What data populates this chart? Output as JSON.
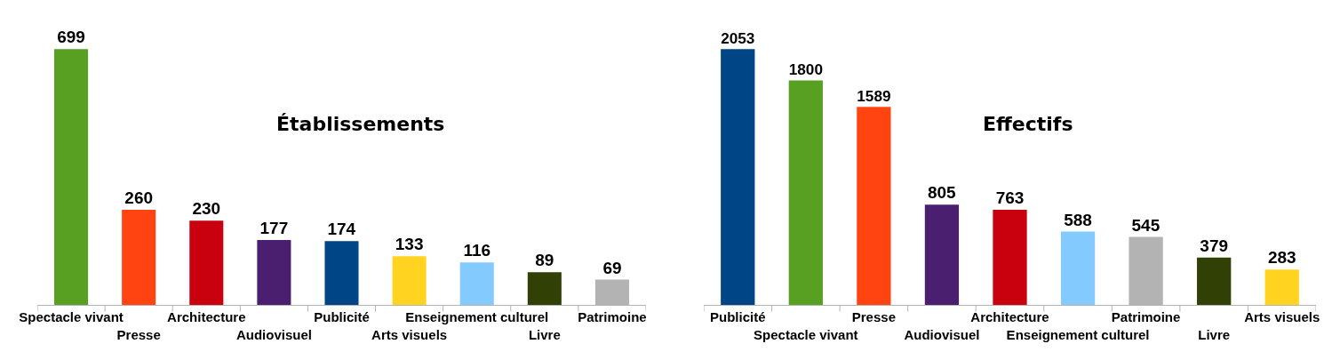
{
  "chart_data": [
    {
      "type": "bar",
      "title": "Établissements",
      "categories": [
        "Spectacle vivant",
        "Presse",
        "Architecture",
        "Audiovisuel",
        "Publicité",
        "Arts visuels",
        "Enseignement culturel",
        "Livre",
        "Patrimoine"
      ],
      "values": [
        699,
        260,
        230,
        177,
        174,
        133,
        116,
        89,
        69
      ],
      "colors": [
        "#58a021",
        "#ff4411",
        "#c9000e",
        "#4b1f6f",
        "#004586",
        "#ffd320",
        "#83caff",
        "#314004",
        "#b3b3b3"
      ],
      "data_labels": true,
      "grid": false
    },
    {
      "type": "bar",
      "title": "Effectifs",
      "categories": [
        "Publicité",
        "Spectacle vivant",
        "Presse",
        "Audiovisuel",
        "Architecture",
        "Enseignement culturel",
        "Patrimoine",
        "Livre",
        "Arts visuels"
      ],
      "values": [
        2053,
        1800,
        1589,
        805,
        763,
        588,
        545,
        379,
        283
      ],
      "colors": [
        "#004586",
        "#58a021",
        "#ff4411",
        "#4b1f6f",
        "#c9000e",
        "#83caff",
        "#b3b3b3",
        "#314004",
        "#ffd320"
      ],
      "data_labels": true,
      "grid": false
    }
  ]
}
